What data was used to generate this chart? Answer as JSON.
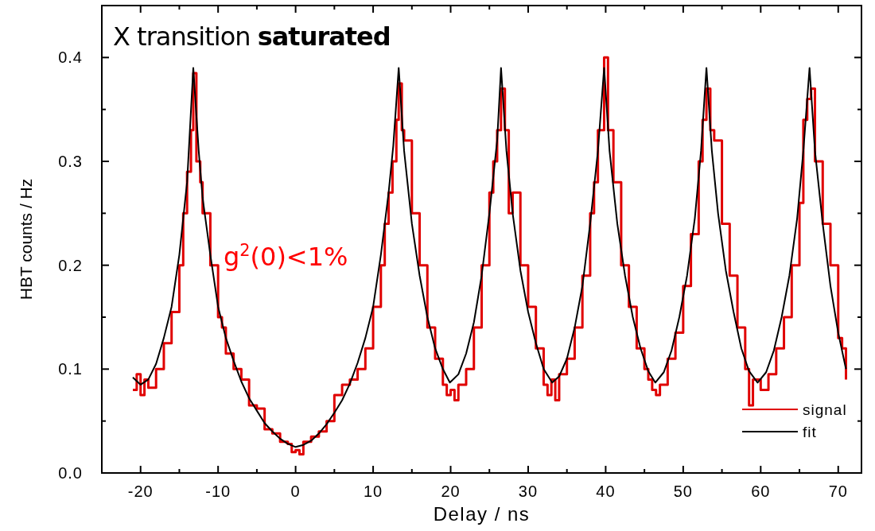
{
  "chart_data": {
    "type": "line",
    "title": "X transition saturated",
    "xlabel": "Delay / ns",
    "ylabel": "HBT counts / Hz",
    "annotations": [
      "g$^{2}$(0)<1%"
    ],
    "xlim": [
      -25,
      73
    ],
    "ylim": [
      0,
      0.45
    ],
    "xticks": [
      -20,
      {
        "value": -15,
        "label": null
      },
      -10,
      {
        "value": -5,
        "label": null
      },
      0,
      {
        "value": 5,
        "label": null
      },
      10,
      {
        "value": 15,
        "label": null
      },
      20,
      {
        "value": 25,
        "label": null
      },
      30,
      {
        "value": 35,
        "label": null
      },
      40,
      {
        "value": 45,
        "label": null
      },
      50,
      {
        "value": 55,
        "label": null
      },
      60,
      {
        "value": 65,
        "label": null
      },
      70
    ],
    "yticks": [
      {
        "value": 0,
        "label": "0.0"
      },
      {
        "value": 0.05,
        "label": null
      },
      {
        "value": 0.1,
        "label": "0.1"
      },
      {
        "value": 0.15,
        "label": null
      },
      {
        "value": 0.2,
        "label": "0.2"
      },
      {
        "value": 0.25,
        "label": null
      },
      {
        "value": 0.3,
        "label": "0.3"
      },
      {
        "value": 0.35,
        "label": null
      },
      {
        "value": 0.4,
        "label": "0.4"
      }
    ],
    "grid": false,
    "legend": "bottom right",
    "marker": "none",
    "line_style": "solid",
    "series": [
      {
        "name": "signal",
        "type": "step",
        "color": "#e00000",
        "x": [
          -21,
          -20.5,
          -20,
          -19.5,
          -19,
          -18,
          -17,
          -16,
          -15,
          -14.5,
          -14,
          -13.5,
          -13.2,
          -12.8,
          -12.3,
          -12,
          -11,
          -10,
          -9.5,
          -9,
          -8,
          -7,
          -6,
          -5,
          -4,
          -3,
          -2,
          -1,
          -0.5,
          0,
          0.5,
          1,
          2,
          3,
          4,
          5,
          6,
          7,
          8,
          9,
          10,
          11,
          11.5,
          12,
          12.5,
          13,
          13.3,
          13.7,
          14,
          15,
          16,
          17,
          18,
          19,
          19.5,
          20,
          20.5,
          21,
          22,
          23,
          24,
          25,
          25.5,
          26,
          26.5,
          27,
          27.5,
          28,
          29,
          30,
          31,
          32,
          32.5,
          33,
          33.5,
          34,
          35,
          36,
          37,
          38,
          38.5,
          39,
          39.8,
          40.3,
          41,
          42,
          43,
          44,
          45,
          45.5,
          46,
          46.5,
          47,
          48,
          49,
          50,
          51,
          52,
          52.5,
          53,
          53.5,
          54,
          55,
          56,
          57,
          58,
          58.5,
          59,
          60,
          61,
          62,
          63,
          64,
          65,
          65.5,
          66,
          66.5,
          67,
          68,
          69,
          70,
          70.5,
          71
        ],
        "values": [
          0.08,
          0.095,
          0.075,
          0.09,
          0.082,
          0.1,
          0.125,
          0.155,
          0.2,
          0.25,
          0.29,
          0.33,
          0.385,
          0.3,
          0.28,
          0.25,
          0.2,
          0.15,
          0.14,
          0.115,
          0.1,
          0.09,
          0.065,
          0.062,
          0.042,
          0.038,
          0.03,
          0.028,
          0.02,
          0.022,
          0.018,
          0.03,
          0.035,
          0.04,
          0.05,
          0.075,
          0.085,
          0.09,
          0.1,
          0.12,
          0.16,
          0.2,
          0.24,
          0.27,
          0.3,
          0.34,
          0.375,
          0.33,
          0.32,
          0.25,
          0.2,
          0.14,
          0.11,
          0.085,
          0.075,
          0.08,
          0.07,
          0.085,
          0.1,
          0.14,
          0.2,
          0.27,
          0.3,
          0.33,
          0.37,
          0.33,
          0.25,
          0.27,
          0.2,
          0.16,
          0.12,
          0.085,
          0.075,
          0.09,
          0.07,
          0.095,
          0.11,
          0.14,
          0.19,
          0.25,
          0.28,
          0.33,
          0.4,
          0.33,
          0.28,
          0.2,
          0.16,
          0.12,
          0.1,
          0.09,
          0.08,
          0.075,
          0.085,
          0.11,
          0.135,
          0.18,
          0.23,
          0.3,
          0.34,
          0.37,
          0.33,
          0.32,
          0.24,
          0.19,
          0.14,
          0.1,
          0.065,
          0.09,
          0.08,
          0.095,
          0.12,
          0.15,
          0.2,
          0.26,
          0.34,
          0.36,
          0.37,
          0.3,
          0.24,
          0.2,
          0.13,
          0.12,
          0.09
        ]
      },
      {
        "name": "fit",
        "type": "line",
        "color": "#000000",
        "x": [
          -21,
          -20,
          -19,
          -18,
          -17,
          -16,
          -15,
          -14,
          -13.2,
          -12.5,
          -12,
          -11,
          -10,
          -9,
          -8,
          -7,
          -6,
          -5,
          -4,
          -3,
          -2,
          -1,
          0,
          1,
          2,
          3,
          4,
          5,
          6,
          7,
          8,
          9,
          10,
          11,
          12,
          12.6,
          13.3,
          14,
          15,
          16,
          17,
          18,
          19,
          19.9,
          21,
          22,
          23,
          24,
          25,
          26,
          26.5,
          27.2,
          28,
          29,
          30,
          31,
          32,
          33.1,
          34,
          35,
          36,
          37,
          38,
          39,
          39.8,
          40.5,
          41.5,
          42.5,
          43.5,
          44.5,
          45.5,
          46.4,
          47.5,
          48.5,
          49.5,
          50.5,
          51.5,
          52.3,
          53,
          53.7,
          54.5,
          55.5,
          56.5,
          57.5,
          58.5,
          59.6,
          60.7,
          61.7,
          62.7,
          63.7,
          64.7,
          65.5,
          66.3,
          67,
          68,
          69,
          70,
          71
        ],
        "values": [
          0.092,
          0.085,
          0.09,
          0.105,
          0.13,
          0.16,
          0.21,
          0.28,
          0.39,
          0.31,
          0.265,
          0.21,
          0.16,
          0.13,
          0.108,
          0.088,
          0.072,
          0.06,
          0.048,
          0.04,
          0.033,
          0.028,
          0.025,
          0.027,
          0.031,
          0.038,
          0.047,
          0.058,
          0.07,
          0.086,
          0.106,
          0.13,
          0.16,
          0.21,
          0.27,
          0.315,
          0.39,
          0.31,
          0.24,
          0.19,
          0.15,
          0.12,
          0.1,
          0.087,
          0.095,
          0.115,
          0.145,
          0.19,
          0.25,
          0.32,
          0.39,
          0.31,
          0.25,
          0.195,
          0.155,
          0.125,
          0.1,
          0.087,
          0.093,
          0.11,
          0.14,
          0.18,
          0.24,
          0.31,
          0.39,
          0.31,
          0.24,
          0.19,
          0.15,
          0.12,
          0.098,
          0.087,
          0.097,
          0.118,
          0.15,
          0.19,
          0.245,
          0.31,
          0.39,
          0.31,
          0.25,
          0.195,
          0.155,
          0.12,
          0.098,
          0.087,
          0.097,
          0.118,
          0.15,
          0.19,
          0.245,
          0.31,
          0.39,
          0.31,
          0.24,
          0.18,
          0.135,
          0.1
        ]
      }
    ]
  }
}
